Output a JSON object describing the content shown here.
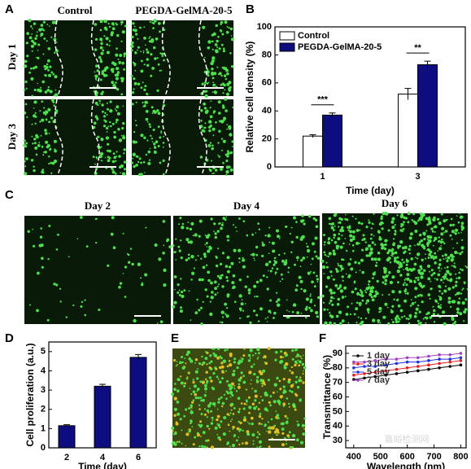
{
  "panel_labels": [
    "A",
    "B",
    "C",
    "D",
    "E",
    "F"
  ],
  "panel_a": {
    "columns": [
      "Control",
      "PEGDA-GelMA-20-5"
    ],
    "rows": [
      "Day 1",
      "Day 3"
    ]
  },
  "panel_c": {
    "titles": [
      "Day 2",
      "Day 4",
      "Day 6"
    ]
  },
  "watermark": "嘉峪检测网",
  "chart_data": [
    {
      "type": "bar",
      "xlabel": "Time (day)",
      "ylabel": "Relative cell density (%)",
      "categories": [
        "1",
        "3"
      ],
      "series": [
        {
          "name": "Control",
          "color": "#ffffff",
          "values": [
            22,
            52
          ],
          "errors": [
            1,
            4
          ]
        },
        {
          "name": "PEGDA-GelMA-20-5",
          "color": "#0d0d80",
          "values": [
            37,
            73
          ],
          "errors": [
            1.5,
            2.5
          ]
        }
      ],
      "annotations": [
        "***",
        "**"
      ],
      "ylim": [
        0,
        100
      ],
      "yticks": [
        0,
        20,
        40,
        60,
        80,
        100
      ],
      "legend": "upper-left"
    },
    {
      "type": "bar",
      "xlabel": "Time (day)",
      "ylabel": "Cell proliferation (a.u.)",
      "categories": [
        "2",
        "4",
        "6"
      ],
      "series": [
        {
          "color": "#0d0d80",
          "values": [
            1.15,
            3.2,
            4.7
          ],
          "errors": [
            0.05,
            0.1,
            0.15
          ]
        }
      ],
      "ylim": [
        0,
        5.5
      ],
      "yticks": [
        0,
        1,
        2,
        3,
        4,
        5
      ]
    },
    {
      "type": "line",
      "xlabel": "Wavelength (nm)",
      "ylabel": "Transmittance (%)",
      "x": [
        400,
        440,
        480,
        520,
        560,
        600,
        640,
        680,
        720,
        760,
        800
      ],
      "series": [
        {
          "name": "1 day",
          "color": "#000000",
          "values": [
            72,
            73,
            74,
            75,
            76,
            77,
            78,
            79,
            80,
            81,
            82
          ]
        },
        {
          "name": "3 day",
          "color": "#e02020",
          "values": [
            75,
            76,
            77,
            78,
            79,
            80,
            81,
            82,
            83,
            84,
            85
          ]
        },
        {
          "name": "5 day",
          "color": "#2030e0",
          "values": [
            80,
            81,
            81,
            82,
            83,
            84,
            84,
            85,
            86,
            86,
            87
          ]
        },
        {
          "name": "7 day",
          "color": "#a040c0",
          "values": [
            84,
            84,
            85,
            86,
            86,
            87,
            87,
            88,
            89,
            89,
            90
          ]
        }
      ],
      "xlim": [
        370,
        820
      ],
      "xticks": [
        400,
        500,
        600,
        700,
        800
      ],
      "ylim": [
        25,
        95
      ],
      "yticks": [
        30,
        40,
        50,
        60,
        70,
        80,
        90
      ],
      "legend": "upper-left"
    }
  ]
}
